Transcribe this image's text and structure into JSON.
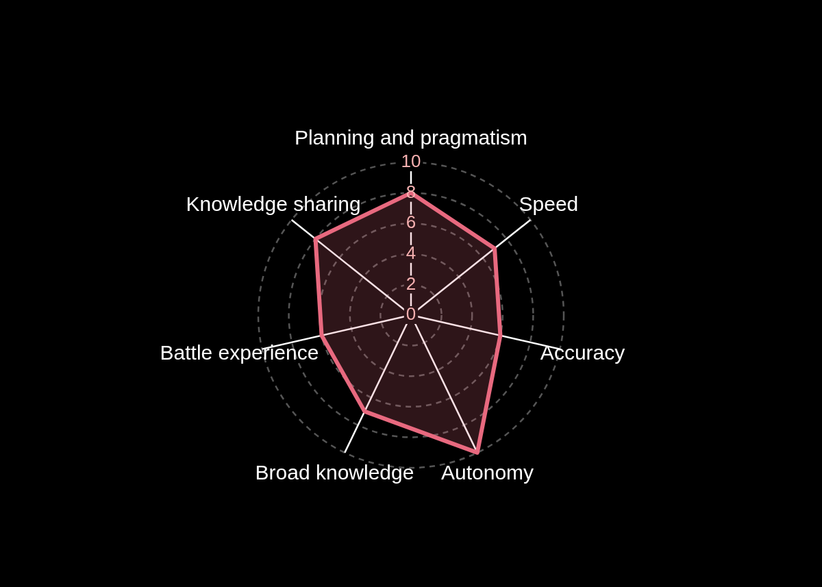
{
  "chart_data": {
    "type": "radar",
    "categories": [
      "Planning and pragmatism",
      "Speed",
      "Accuracy",
      "Autonomy",
      "Broad knowledge",
      "Battle experience",
      "Knowledge sharing"
    ],
    "series": [
      {
        "color": "#e8697f",
        "values": [
          8,
          7,
          6,
          10,
          7,
          6,
          8
        ]
      }
    ],
    "ylim": [
      0,
      10
    ],
    "yticks": [
      0,
      2,
      4,
      6,
      8,
      10
    ],
    "grid": true,
    "marker": "none",
    "legend": false
  }
}
